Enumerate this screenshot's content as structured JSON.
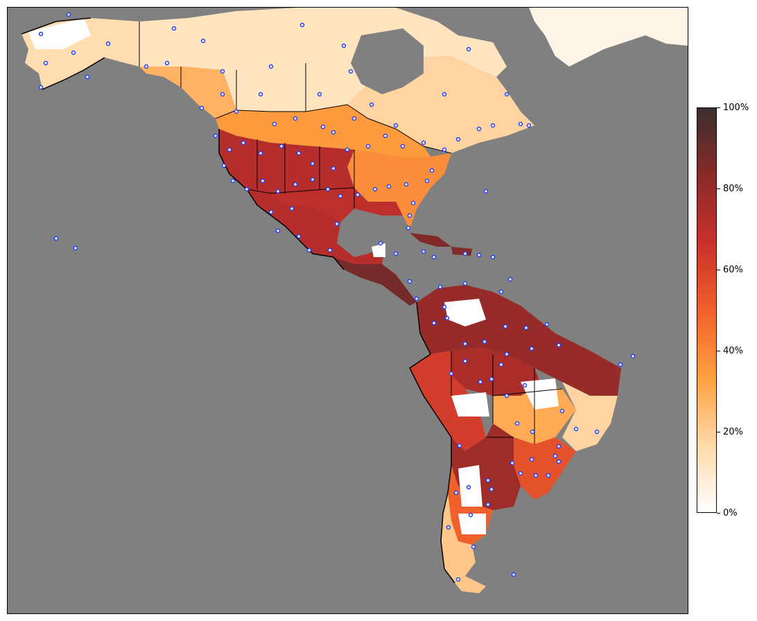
{
  "map": {
    "ocean_color": "#808080",
    "no_data_color": "#ffffff",
    "station_marker": {
      "fill": "#ffffff",
      "stroke": "#1f3fff",
      "icon": "circle-marker-icon"
    },
    "regions": {
      "greenland": {
        "value": 5
      },
      "alaska": {
        "value": 15
      },
      "canada_north": {
        "value": 12
      },
      "canada_west": {
        "value": 28
      },
      "canada_east": {
        "value": 18
      },
      "us_north": {
        "value": 35
      },
      "us_east": {
        "value": 38
      },
      "us_southwest": {
        "value": 72
      },
      "us_texas_south": {
        "value": 70
      },
      "mexico": {
        "value": 72
      },
      "central_america": {
        "value": 88
      },
      "caribbean": {
        "value": 85
      },
      "south_america_north": {
        "value": 80
      },
      "amazon": {
        "value": 75
      },
      "peru_bolivia": {
        "value": 62
      },
      "brazil_center": {
        "value": 30
      },
      "brazil_east": {
        "value": 18
      },
      "brazil_south": {
        "value": 55
      },
      "argentina_north": {
        "value": 78
      },
      "argentina_south": {
        "value": 50
      },
      "patagonia": {
        "value": 22
      }
    }
  },
  "colorbar": {
    "stops": [
      "#ffffff",
      "#ffd9a8",
      "#ffa040",
      "#f0602a",
      "#c9302c",
      "#8a2a28",
      "#3a2e2e"
    ],
    "ticks": [
      "0%",
      "20%",
      "40%",
      "60%",
      "80%",
      "100%"
    ]
  }
}
